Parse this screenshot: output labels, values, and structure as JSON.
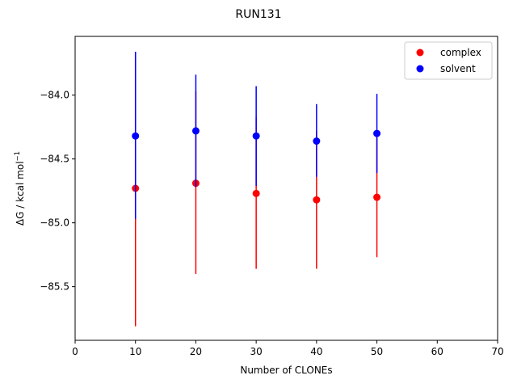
{
  "chart_data": {
    "type": "scatter",
    "title": "RUN131",
    "xlabel": "Number of CLONEs",
    "ylabel": "ΔG / kcal mol",
    "ylabel_superscript": "−1",
    "xlim": [
      0,
      70
    ],
    "ylim": [
      -85.92,
      -83.54
    ],
    "xticks": [
      0,
      10,
      20,
      30,
      40,
      50,
      60,
      70
    ],
    "xtick_labels": [
      "0",
      "10",
      "20",
      "30",
      "40",
      "50",
      "60",
      "70"
    ],
    "yticks": [
      -84.0,
      -84.5,
      -85.0,
      -85.5
    ],
    "ytick_labels": [
      "−84.0",
      "−84.5",
      "−85.0",
      "−85.5"
    ],
    "grid": false,
    "legend_position": "top-right",
    "series": [
      {
        "name": "complex",
        "color": "#ff0000",
        "x": [
          10,
          20,
          30,
          40,
          50
        ],
        "y": [
          -84.73,
          -84.69,
          -84.77,
          -84.82,
          -84.8
        ],
        "err_low": [
          -85.81,
          -85.4,
          -85.36,
          -85.36,
          -85.27
        ],
        "err_high": [
          -83.66,
          -83.97,
          -84.17,
          -84.28,
          -84.33
        ]
      },
      {
        "name": "solvent",
        "color": "#0000ff",
        "x": [
          10,
          20,
          30,
          40,
          50
        ],
        "y": [
          -84.32,
          -84.28,
          -84.32,
          -84.36,
          -84.3
        ],
        "err_low": [
          -84.97,
          -84.72,
          -84.71,
          -84.64,
          -84.61
        ],
        "err_high": [
          -83.66,
          -83.84,
          -83.93,
          -84.07,
          -83.99
        ]
      }
    ]
  }
}
